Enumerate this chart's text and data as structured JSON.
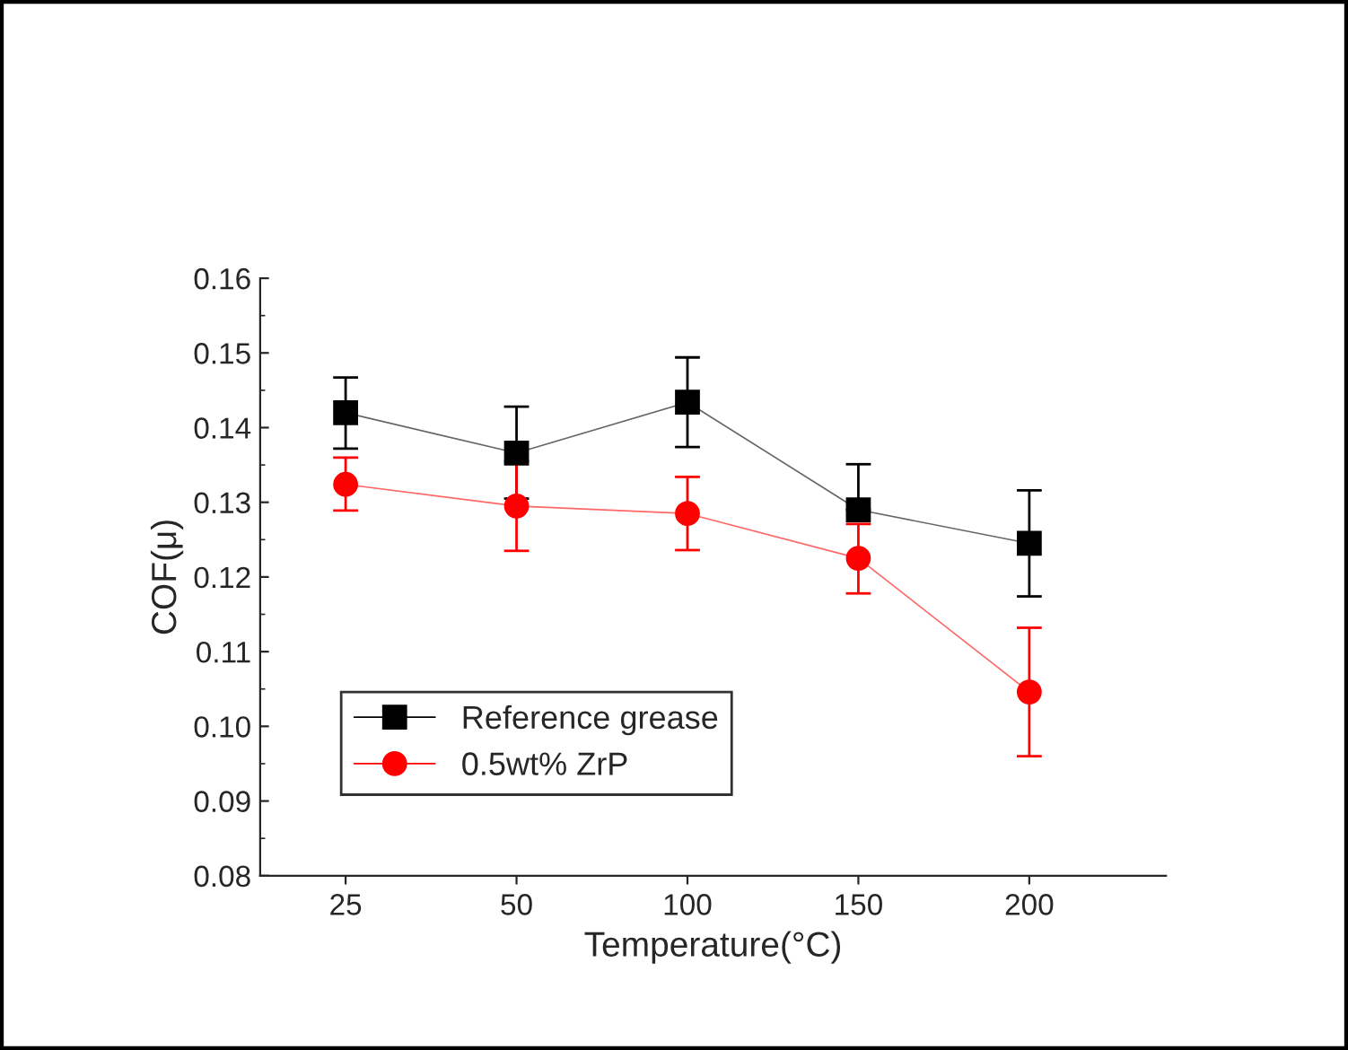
{
  "chart_data": {
    "type": "line",
    "xlabel": "Temperature(°C)",
    "ylabel": "COF(μ)",
    "categories": [
      "25",
      "50",
      "100",
      "150",
      "200"
    ],
    "series": [
      {
        "name": "Reference grease",
        "color": "#000000",
        "marker": "square",
        "values": [
          0.142,
          0.1366,
          0.1434,
          0.129,
          0.1245
        ],
        "errors": [
          [
            0.1372,
            0.1467
          ],
          [
            0.1305,
            0.1428
          ],
          [
            0.1374,
            0.1494
          ],
          [
            0.129,
            0.1351
          ],
          [
            0.1174,
            0.1316
          ]
        ]
      },
      {
        "name": "0.5wt% ZrP",
        "color": "#ff0000",
        "marker": "circle",
        "values": [
          0.1324,
          0.1295,
          0.1285,
          0.1225,
          0.1046
        ],
        "errors": [
          [
            0.1289,
            0.136
          ],
          [
            0.1235,
            0.1355
          ],
          [
            0.1236,
            0.1334
          ],
          [
            0.1178,
            0.1271
          ],
          [
            0.096,
            0.1132
          ]
        ]
      }
    ],
    "ylim": [
      0.08,
      0.16
    ],
    "yticks": [
      {
        "value": 0.08,
        "label": "0.08"
      },
      {
        "value": 0.09,
        "label": "0.09"
      },
      {
        "value": 0.1,
        "label": "0.10"
      },
      {
        "value": 0.11,
        "label": "0.11"
      },
      {
        "value": 0.12,
        "label": "0.12"
      },
      {
        "value": 0.13,
        "label": "0.13"
      },
      {
        "value": 0.14,
        "label": "0.14"
      },
      {
        "value": 0.15,
        "label": "0.15"
      },
      {
        "value": 0.16,
        "label": "0.16"
      }
    ],
    "legend": "bottom left",
    "grid": false,
    "line_style": "solid"
  }
}
